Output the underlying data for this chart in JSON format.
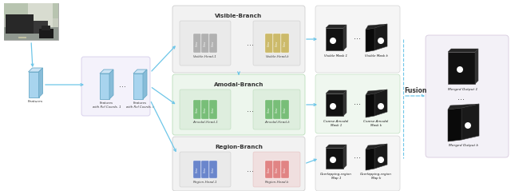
{
  "bg_color": "#ffffff",
  "arrow_color": "#6ec6e8",
  "visible_branch_title": "Visible-Branch",
  "amodal_branch_title": "Amodal-Branch",
  "region_branch_title": "Region-Branch",
  "fusion_label": "Fusion",
  "lbl_vis_head1": "Visible-Head-1",
  "lbl_vis_headk": "Visible-Head-k",
  "lbl_amod_head1": "Amodal-Head-1",
  "lbl_amod_headk": "Amodal-Head-k",
  "lbl_reg_head1": "Region-Head-1",
  "lbl_reg_headk": "Region-Head-k",
  "lbl_features": "Features",
  "lbl_roi1": "Features\nwith RoI Coords. 1",
  "lbl_roik": "Features\nwith RoI Coords. k",
  "lbl_vmask1": "Visible Mask 1",
  "lbl_vmaskk": "Visible Mask k",
  "lbl_amask1": "Coarse Amodal\nMask 1",
  "lbl_amaskk": "Coarse Amodal\nMask k",
  "lbl_rmask1": "Overlapping-region\nMap 1",
  "lbl_rmaskk": "Overlapping-region\nMap k",
  "lbl_merged1": "Merged Output 1",
  "lbl_mergedk": "Merged Output k",
  "col_vis_bg": "#f0f0f0",
  "col_amod_bg": "#eaf5ea",
  "col_reg_bg": "#f0f0f0",
  "col_roi_bg": "#ece8f8",
  "col_fusion_bg": "#f0eef5",
  "col_out_vis_bg": "#f2f2f2",
  "col_out_amod_bg": "#eaf5ea",
  "col_out_reg_bg": "#f2f2f2",
  "col_feat": "#a8d4ee",
  "col_vis1": "#aaaaaa",
  "col_visk": "#c8b458",
  "col_amod": "#6ab86a",
  "col_reg1": "#5878c8",
  "col_regk": "#e07878"
}
